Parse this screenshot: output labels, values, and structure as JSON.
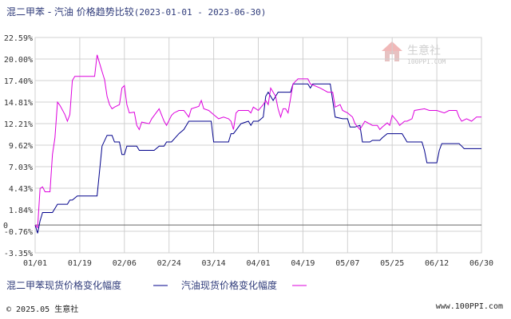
{
  "header": {
    "title": "混二甲苯 - 汽油 价格趋势比较",
    "date_range": "(2023-01-01 - 2023-06-30)"
  },
  "watermark": {
    "brand": "生意社",
    "url": "100PPI.COM"
  },
  "footer": {
    "copyright": "© 2025.05 生意社",
    "site": "www.100PPI.com"
  },
  "colors": {
    "series_1": "#00008b",
    "series_2": "#dd00dd",
    "grid": "#d0d0d0",
    "zero": "#666666",
    "axis": "#333333"
  },
  "chart_data": {
    "type": "line",
    "title": "混二甲苯 - 汽油 价格趋势比较",
    "xlabel": "",
    "ylabel": "",
    "x_range_days": [
      0,
      180
    ],
    "ylim": [
      -3.35,
      22.59
    ],
    "y_ticks": [
      22.59,
      20.0,
      17.4,
      14.81,
      12.21,
      9.62,
      7.03,
      4.43,
      1.84,
      -0.76,
      -3.35
    ],
    "y_tick_labels": [
      "22.59%",
      "20.00%",
      "17.40%",
      "14.81%",
      "12.21%",
      "9.62%",
      "7.03%",
      "4.43%",
      "1.84%",
      "-0.76%",
      "-3.35%"
    ],
    "zero_label": "0",
    "x_tick_labels": [
      "01/01",
      "01/19",
      "02/06",
      "02/24",
      "03/14",
      "04/01",
      "04/19",
      "05/07",
      "05/25",
      "06/12",
      "06/30"
    ],
    "grid": true,
    "legend_position": "bottom-left",
    "series": [
      {
        "name": "混二甲苯现货价格变化幅度",
        "color": "#00008b",
        "points": [
          [
            0,
            0
          ],
          [
            1,
            -1.0
          ],
          [
            2,
            0.5
          ],
          [
            3,
            1.5
          ],
          [
            4,
            1.5
          ],
          [
            7,
            1.5
          ],
          [
            9,
            2.5
          ],
          [
            13,
            2.5
          ],
          [
            14,
            3.0
          ],
          [
            15,
            3.0
          ],
          [
            17,
            3.5
          ],
          [
            25,
            3.5
          ],
          [
            27,
            9.5
          ],
          [
            29,
            10.8
          ],
          [
            31,
            10.8
          ],
          [
            32,
            10.0
          ],
          [
            34,
            10.0
          ],
          [
            35,
            8.5
          ],
          [
            36,
            8.5
          ],
          [
            37,
            9.5
          ],
          [
            41,
            9.5
          ],
          [
            42,
            9.0
          ],
          [
            48,
            9.0
          ],
          [
            50,
            9.5
          ],
          [
            52,
            9.5
          ],
          [
            53,
            10.0
          ],
          [
            55,
            10.0
          ],
          [
            58,
            11.0
          ],
          [
            60,
            11.5
          ],
          [
            62,
            12.5
          ],
          [
            67,
            12.5
          ],
          [
            71,
            12.5
          ],
          [
            72,
            10.0
          ],
          [
            78,
            10.0
          ],
          [
            79,
            11.0
          ],
          [
            80,
            11.0
          ],
          [
            83,
            12.2
          ],
          [
            86,
            12.5
          ],
          [
            87,
            12.0
          ],
          [
            88,
            12.5
          ],
          [
            90,
            12.5
          ],
          [
            92,
            13.0
          ],
          [
            93,
            15.5
          ],
          [
            94,
            16.0
          ],
          [
            96,
            15.0
          ],
          [
            98,
            16.0
          ],
          [
            100,
            16.0
          ],
          [
            103,
            16.0
          ],
          [
            104,
            17.0
          ],
          [
            110,
            17.0
          ],
          [
            111,
            16.5
          ],
          [
            112,
            17.0
          ],
          [
            119,
            17.0
          ],
          [
            120,
            15.0
          ],
          [
            121,
            13.0
          ],
          [
            124,
            12.8
          ],
          [
            126,
            12.8
          ],
          [
            127,
            11.8
          ],
          [
            128,
            11.8
          ],
          [
            129,
            11.8
          ],
          [
            131,
            12.0
          ],
          [
            132,
            10.0
          ],
          [
            135,
            10.0
          ],
          [
            136,
            10.2
          ],
          [
            139,
            10.2
          ],
          [
            140,
            10.5
          ],
          [
            142,
            11.0
          ],
          [
            148,
            11.0
          ],
          [
            150,
            10.0
          ],
          [
            156,
            10.0
          ],
          [
            157,
            9.0
          ],
          [
            158,
            7.5
          ],
          [
            162,
            7.5
          ],
          [
            163,
            9.0
          ],
          [
            164,
            9.8
          ],
          [
            171,
            9.8
          ],
          [
            172,
            9.5
          ],
          [
            173,
            9.2
          ],
          [
            180,
            9.2
          ]
        ]
      },
      {
        "name": "汽油现货价格变化幅度",
        "color": "#dd00dd",
        "points": [
          [
            0,
            0
          ],
          [
            1,
            -0.3
          ],
          [
            2,
            4.4
          ],
          [
            3,
            4.6
          ],
          [
            4,
            4.0
          ],
          [
            6,
            4.0
          ],
          [
            7,
            8.5
          ],
          [
            8,
            10.5
          ],
          [
            9,
            14.8
          ],
          [
            10,
            14.4
          ],
          [
            12,
            13.3
          ],
          [
            13,
            12.5
          ],
          [
            14,
            13.3
          ],
          [
            15,
            17.4
          ],
          [
            16,
            17.9
          ],
          [
            23,
            17.9
          ],
          [
            24,
            17.9
          ],
          [
            25,
            20.5
          ],
          [
            26,
            19.5
          ],
          [
            27,
            18.5
          ],
          [
            28,
            17.5
          ],
          [
            29,
            15.5
          ],
          [
            30,
            14.5
          ],
          [
            31,
            14.0
          ],
          [
            32,
            14.2
          ],
          [
            34,
            14.5
          ],
          [
            35,
            16.5
          ],
          [
            36,
            16.8
          ],
          [
            37,
            14.5
          ],
          [
            38,
            13.5
          ],
          [
            40,
            13.6
          ],
          [
            41,
            12.0
          ],
          [
            42,
            11.5
          ],
          [
            43,
            12.4
          ],
          [
            46,
            12.2
          ],
          [
            47,
            12.8
          ],
          [
            50,
            14.0
          ],
          [
            52,
            12.5
          ],
          [
            53,
            12.0
          ],
          [
            55,
            13.2
          ],
          [
            56,
            13.5
          ],
          [
            58,
            13.8
          ],
          [
            60,
            13.8
          ],
          [
            62,
            13.0
          ],
          [
            63,
            14.0
          ],
          [
            66,
            14.3
          ],
          [
            67,
            15.0
          ],
          [
            68,
            14.0
          ],
          [
            70,
            13.8
          ],
          [
            72,
            13.3
          ],
          [
            74,
            12.8
          ],
          [
            76,
            13.0
          ],
          [
            78,
            12.8
          ],
          [
            79,
            12.5
          ],
          [
            80,
            11.5
          ],
          [
            81,
            13.5
          ],
          [
            82,
            13.8
          ],
          [
            86,
            13.8
          ],
          [
            87,
            13.5
          ],
          [
            88,
            14.2
          ],
          [
            90,
            13.8
          ],
          [
            92,
            14.5
          ],
          [
            93,
            15.0
          ],
          [
            94,
            14.5
          ],
          [
            95,
            16.5
          ],
          [
            97,
            15.5
          ],
          [
            98,
            14.0
          ],
          [
            99,
            13.0
          ],
          [
            100,
            14.0
          ],
          [
            101,
            14.0
          ],
          [
            102,
            13.5
          ],
          [
            104,
            17.0
          ],
          [
            106,
            17.6
          ],
          [
            110,
            17.6
          ],
          [
            111,
            17.0
          ],
          [
            115,
            16.5
          ],
          [
            118,
            16.0
          ],
          [
            120,
            16.0
          ],
          [
            121,
            14.2
          ],
          [
            123,
            14.5
          ],
          [
            124,
            13.8
          ],
          [
            126,
            13.5
          ],
          [
            128,
            13.0
          ],
          [
            129,
            12.2
          ],
          [
            131,
            11.5
          ],
          [
            132,
            12.0
          ],
          [
            133,
            12.5
          ],
          [
            136,
            12.0
          ],
          [
            138,
            12.0
          ],
          [
            139,
            11.5
          ],
          [
            140,
            11.8
          ],
          [
            142,
            12.3
          ],
          [
            143,
            12.0
          ],
          [
            144,
            13.2
          ],
          [
            146,
            12.5
          ],
          [
            147,
            12.0
          ],
          [
            149,
            12.5
          ],
          [
            150,
            12.5
          ],
          [
            152,
            12.8
          ],
          [
            153,
            13.8
          ],
          [
            157,
            14.0
          ],
          [
            159,
            13.8
          ],
          [
            162,
            13.8
          ],
          [
            165,
            13.5
          ],
          [
            167,
            13.8
          ],
          [
            170,
            13.8
          ],
          [
            171,
            13.0
          ],
          [
            172,
            12.5
          ],
          [
            174,
            12.8
          ],
          [
            176,
            12.5
          ],
          [
            178,
            13.0
          ],
          [
            180,
            13.0
          ]
        ]
      }
    ]
  }
}
